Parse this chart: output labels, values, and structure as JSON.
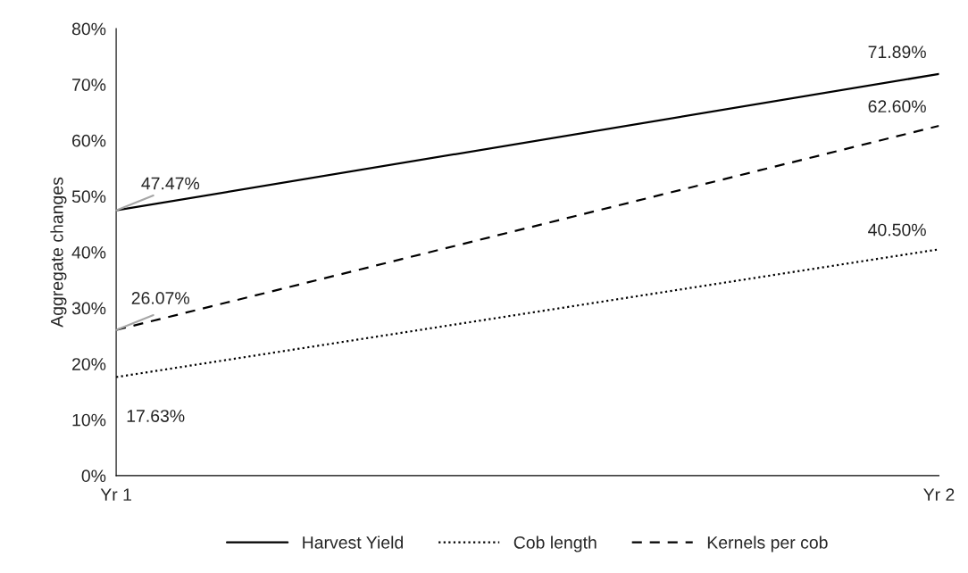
{
  "chart_data": {
    "type": "line",
    "ylabel": "Aggregate changes",
    "categories": [
      "Yr 1",
      "Yr 2"
    ],
    "series": [
      {
        "name": "Harvest Yield",
        "color": "#000000",
        "line_style": "solid",
        "values": [
          47.47,
          71.89
        ],
        "value_labels": [
          "47.47%",
          "71.89%"
        ]
      },
      {
        "name": "Cob length",
        "color": "#000000",
        "line_style": "dotted",
        "values": [
          17.63,
          40.5
        ],
        "value_labels": [
          "17.63%",
          "40.50%"
        ]
      },
      {
        "name": "Kernels per cob",
        "color": "#000000",
        "line_style": "dashed",
        "values": [
          26.07,
          62.6
        ],
        "value_labels": [
          "26.07%",
          "62.60%"
        ]
      }
    ],
    "ylim": [
      0,
      80
    ],
    "yticks": [
      {
        "value": 0,
        "label": "0%"
      },
      {
        "value": 10,
        "label": "10%"
      },
      {
        "value": 20,
        "label": "20%"
      },
      {
        "value": 30,
        "label": "30%"
      },
      {
        "value": 40,
        "label": "40%"
      },
      {
        "value": 50,
        "label": "50%"
      },
      {
        "value": 60,
        "label": "60%"
      },
      {
        "value": 70,
        "label": "70%"
      },
      {
        "value": 80,
        "label": "80%"
      }
    ],
    "grid": false,
    "legend": "bottom",
    "marker": "none"
  }
}
